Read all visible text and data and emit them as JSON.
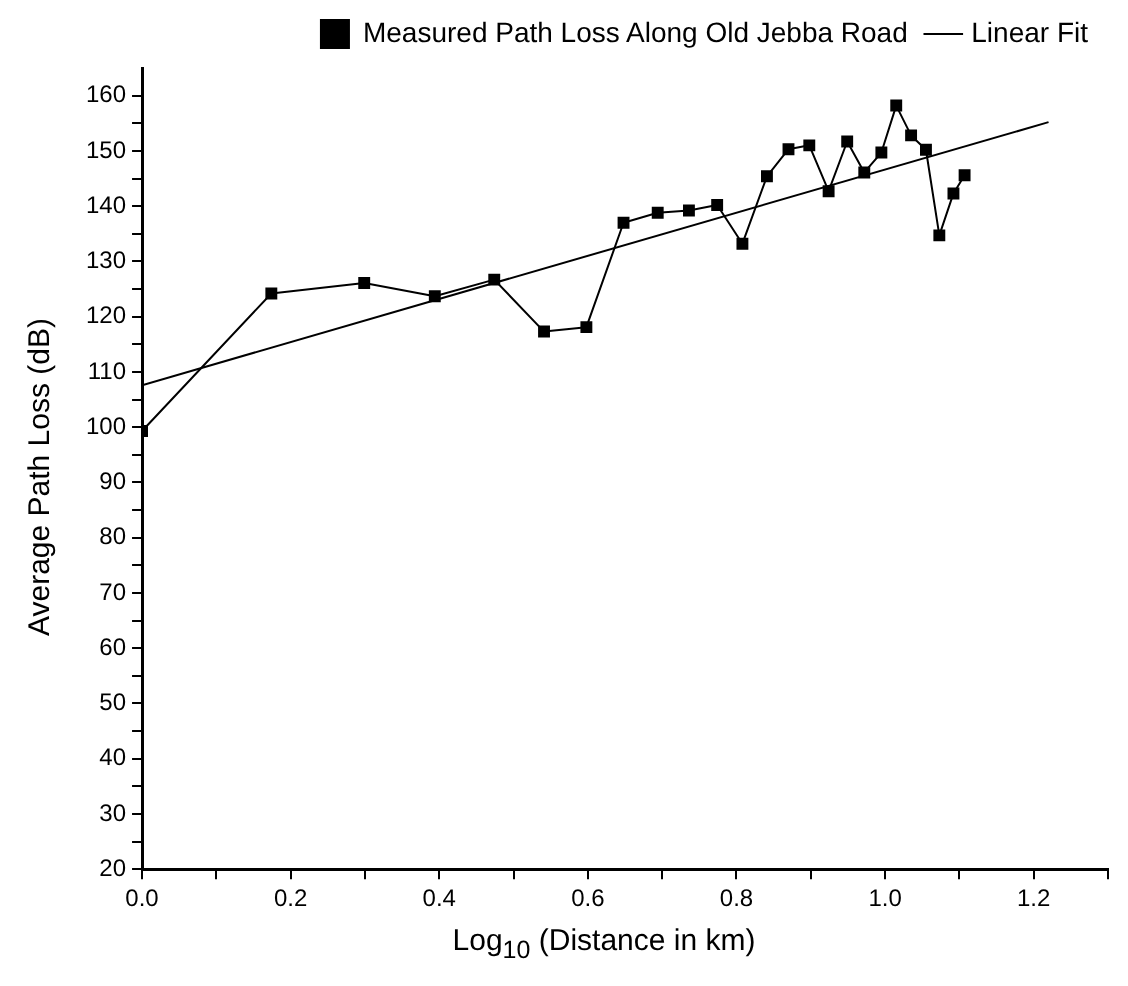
{
  "chart_data": {
    "type": "line",
    "xlabel": "Log$_{10}$ (Distance in km)",
    "ylabel": "Average Path Loss (dB)",
    "xlim": [
      0,
      1.3
    ],
    "ylim": [
      20,
      165
    ],
    "xticks": [
      {
        "value": 0,
        "label": "0.0"
      },
      {
        "value": 0.1,
        "label": null
      },
      0.2,
      {
        "value": 0.3,
        "label": null
      },
      0.4,
      {
        "value": 0.5,
        "label": null
      },
      0.6,
      {
        "value": 0.7,
        "label": null
      },
      0.8,
      {
        "value": 0.9,
        "label": null
      },
      {
        "value": 1,
        "label": "1.0"
      },
      {
        "value": 1.1,
        "label": null
      },
      1.2,
      {
        "value": 1.3,
        "label": null
      }
    ],
    "yticks": [
      20,
      {
        "value": 25,
        "label": null
      },
      30,
      {
        "value": 35,
        "label": null
      },
      40,
      {
        "value": 45,
        "label": null
      },
      50,
      {
        "value": 55,
        "label": null
      },
      60,
      {
        "value": 65,
        "label": null
      },
      70,
      {
        "value": 75,
        "label": null
      },
      80,
      {
        "value": 85,
        "label": null
      },
      90,
      {
        "value": 95,
        "label": null
      },
      100,
      {
        "value": 105,
        "label": null
      },
      110,
      {
        "value": 115,
        "label": null
      },
      120,
      {
        "value": 125,
        "label": null
      },
      130,
      {
        "value": 135,
        "label": null
      },
      140,
      {
        "value": 145,
        "label": null
      },
      150,
      {
        "value": 155,
        "label": null
      },
      160
    ],
    "grid": false,
    "legend": "top right",
    "series": [
      {
        "name": "Measured Path Loss Along Old Jebba Road",
        "color": "#000000",
        "marker": "square",
        "line_style": "solid",
        "x": [
          0,
          0.174,
          0.299,
          0.394,
          0.474,
          0.541,
          0.598,
          0.648,
          0.694,
          0.736,
          0.774,
          0.808,
          0.841,
          0.87,
          0.898,
          0.924,
          0.949,
          0.972,
          0.995,
          1.015,
          1.035,
          1.055,
          1.073,
          1.092,
          1.107
        ],
        "values": [
          99.3,
          124.2,
          126.1,
          123.7,
          126.7,
          117.3,
          118.1,
          137,
          138.8,
          139.2,
          140.2,
          133.2,
          145.4,
          150.3,
          151,
          142.7,
          151.7,
          146.1,
          149.7,
          158.2,
          152.8,
          150.2,
          134.7,
          142.3,
          145.6
        ]
      },
      {
        "name": "Linear Fit",
        "color": "#000000",
        "marker": "none",
        "line_style": "solid",
        "x": [
          0,
          1.22
        ],
        "values": [
          107.6,
          155.2
        ]
      }
    ]
  }
}
